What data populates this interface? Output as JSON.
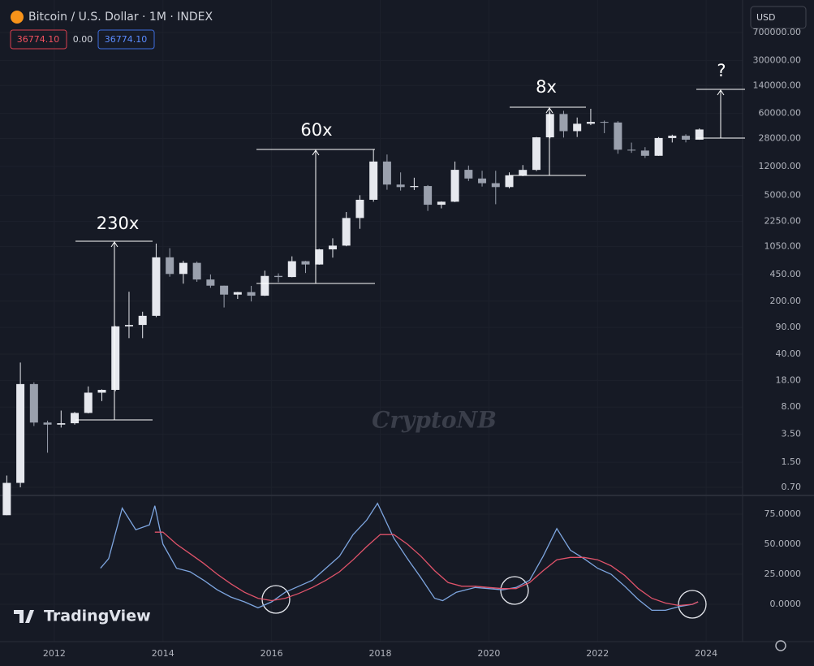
{
  "header": {
    "symbol": "Bitcoin / U.S. Dollar · 1M · INDEX",
    "open_value": "36774.10",
    "change_value": "0.00",
    "close_value": "36774.10",
    "currency": "USD",
    "brand": "TradingView",
    "watermark": "CryptoNB"
  },
  "chart_data": [
    {
      "type": "candlestick",
      "log_scale": true,
      "grid": true,
      "up_color": "#e6e8ee",
      "down_color": "#9aa0ad",
      "annotations": [
        "230x",
        "60x",
        "8x",
        "?"
      ],
      "x": [
        2011.125,
        2011.375,
        2011.625,
        2011.875,
        2012.125,
        2012.375,
        2012.625,
        2012.875,
        2013.125,
        2013.375,
        2013.625,
        2013.875,
        2014.125,
        2014.375,
        2014.625,
        2014.875,
        2015.125,
        2015.375,
        2015.625,
        2015.875,
        2016.125,
        2016.375,
        2016.625,
        2016.875,
        2017.125,
        2017.375,
        2017.625,
        2017.875,
        2018.125,
        2018.375,
        2018.625,
        2018.875,
        2019.125,
        2019.375,
        2019.625,
        2019.875,
        2020.125,
        2020.375,
        2020.625,
        2020.875,
        2021.125,
        2021.375,
        2021.625,
        2021.875,
        2022.125,
        2022.375,
        2022.625,
        2022.875,
        2023.125,
        2023.375,
        2023.625,
        2023.875
      ],
      "open": [
        0.3,
        0.8,
        16.1,
        5.0,
        4.7,
        4.9,
        6.7,
        12.4,
        13.5,
        93,
        97,
        128,
        757,
        457,
        640,
        386,
        320,
        244,
        263,
        236,
        430,
        416,
        673,
        609,
        964,
        1080,
        2500,
        4350,
        13900,
        6900,
        6400,
        6600,
        3740,
        4100,
        10800,
        8300,
        7200,
        6400,
        9140,
        10780,
        28990,
        58900,
        35000,
        43800,
        46300,
        45500,
        19900,
        19400,
        16550,
        28400,
        30400,
        27000
      ],
      "high": [
        1.0,
        31,
        17,
        5.3,
        7.2,
        6.9,
        15,
        13.7,
        94,
        266,
        145,
        1150,
        1000,
        680,
        665,
        450,
        320,
        265,
        318,
        505,
        465,
        780,
        680,
        980,
        1350,
        3000,
        5000,
        19800,
        17200,
        9990,
        8500,
        6800,
        4150,
        13900,
        12300,
        10500,
        10500,
        10000,
        12480,
        29300,
        61800,
        64900,
        52900,
        69000,
        48200,
        47400,
        24700,
        21500,
        29200,
        31400,
        31800,
        38000
      ],
      "low": [
        0.3,
        0.7,
        4.5,
        2.0,
        4.3,
        4.7,
        6.6,
        9.6,
        13,
        65,
        65,
        123,
        420,
        340,
        360,
        300,
        165,
        214,
        198,
        234,
        355,
        413,
        470,
        605,
        750,
        1060,
        1800,
        4100,
        5900,
        5750,
        5850,
        3100,
        3350,
        4050,
        7700,
        6500,
        3800,
        6150,
        8900,
        10400,
        28100,
        28800,
        29300,
        42000,
        32900,
        17600,
        18100,
        15500,
        16500,
        24800,
        24900,
        26900
      ],
      "close": [
        0.8,
        16.1,
        5.0,
        4.7,
        4.9,
        6.7,
        12.4,
        13.5,
        93,
        97,
        128,
        757,
        457,
        640,
        386,
        320,
        244,
        263,
        236,
        430,
        416,
        673,
        609,
        964,
        1080,
        2500,
        4350,
        13900,
        6900,
        6400,
        6600,
        3740,
        4100,
        10800,
        8300,
        7200,
        6400,
        9140,
        10780,
        28990,
        58900,
        35000,
        43800,
        46300,
        45500,
        19900,
        19400,
        16550,
        28400,
        30400,
        27000,
        36774.1
      ],
      "xlim": [
        2011.0,
        2024.67
      ],
      "ylim": [
        0.574,
        1880000
      ],
      "yticks": [
        {
          "value": 700000,
          "label": "700000.00"
        },
        {
          "value": 300000,
          "label": "300000.00"
        },
        {
          "value": 140000,
          "label": "140000.00"
        },
        {
          "value": 60000,
          "label": "60000.00"
        },
        {
          "value": 28000,
          "label": "28000.00"
        },
        {
          "value": 12000,
          "label": "12000.00"
        },
        {
          "value": 5000,
          "label": "5000.00"
        },
        {
          "value": 2250,
          "label": "2250.00"
        },
        {
          "value": 1050,
          "label": "1050.00"
        },
        {
          "value": 450,
          "label": "450.00"
        },
        {
          "value": 200,
          "label": "200.00"
        },
        {
          "value": 90,
          "label": "90.00"
        },
        {
          "value": 40,
          "label": "40.00"
        },
        {
          "value": 18,
          "label": "18.00"
        },
        {
          "value": 8,
          "label": "8.00"
        },
        {
          "value": 3.5,
          "label": "3.50"
        },
        {
          "value": 1.5,
          "label": "1.50"
        },
        {
          "value": 0.7,
          "label": "0.70"
        }
      ]
    },
    {
      "type": "line",
      "grid": true,
      "xlim": [
        2011.0,
        2024.67
      ],
      "ylim": [
        -31.1,
        89.2
      ],
      "xticks": [
        2012,
        2014,
        2016,
        2018,
        2020,
        2022,
        2024
      ],
      "yticks": [
        {
          "value": 75,
          "label": "75.0000"
        },
        {
          "value": 50,
          "label": "50.0000"
        },
        {
          "value": 25,
          "label": "25.0000"
        },
        {
          "value": 0,
          "label": "0.0000"
        }
      ],
      "series": [
        {
          "color": "#7ea6e0",
          "x": [
            2012.85,
            2013.0,
            2013.25,
            2013.5,
            2013.75,
            2013.85,
            2014.0,
            2014.25,
            2014.5,
            2014.75,
            2015.0,
            2015.25,
            2015.5,
            2015.75,
            2016.0,
            2016.25,
            2016.5,
            2016.75,
            2017.0,
            2017.25,
            2017.5,
            2017.75,
            2017.95,
            2018.25,
            2018.5,
            2018.75,
            2019.0,
            2019.15,
            2019.4,
            2019.75,
            2020.0,
            2020.25,
            2020.5,
            2020.75,
            2021.0,
            2021.25,
            2021.5,
            2021.75,
            2022.0,
            2022.25,
            2022.5,
            2022.75,
            2023.0,
            2023.25,
            2023.5,
            2023.75,
            2023.85
          ],
          "values": [
            30,
            38,
            80,
            62,
            66,
            82,
            50,
            30,
            27,
            20,
            12,
            6,
            2,
            -3,
            2,
            10,
            15,
            20,
            30,
            40,
            58,
            70,
            84,
            55,
            38,
            22,
            5,
            3,
            10,
            14,
            13,
            12,
            14,
            20,
            40,
            63,
            45,
            38,
            30,
            25,
            15,
            4,
            -5,
            -5,
            -2,
            0,
            2
          ]
        },
        {
          "color": "#e0536a",
          "x": [
            2013.85,
            2014.0,
            2014.25,
            2014.5,
            2014.75,
            2015.0,
            2015.25,
            2015.5,
            2015.75,
            2016.0,
            2016.25,
            2016.5,
            2016.75,
            2017.0,
            2017.25,
            2017.5,
            2017.75,
            2018.0,
            2018.25,
            2018.5,
            2018.75,
            2019.0,
            2019.25,
            2019.5,
            2019.75,
            2020.0,
            2020.25,
            2020.5,
            2020.75,
            2021.0,
            2021.25,
            2021.5,
            2021.75,
            2022.0,
            2022.25,
            2022.5,
            2022.75,
            2023.0,
            2023.25,
            2023.5,
            2023.75,
            2023.85
          ],
          "values": [
            60,
            60,
            50,
            42,
            34,
            25,
            17,
            10,
            5,
            3,
            5,
            9,
            14,
            20,
            27,
            37,
            48,
            58,
            58,
            50,
            40,
            28,
            18,
            15,
            15,
            14,
            13,
            13,
            18,
            28,
            37,
            39,
            39,
            37,
            32,
            24,
            13,
            5,
            1,
            -1,
            0,
            2
          ]
        }
      ]
    }
  ]
}
